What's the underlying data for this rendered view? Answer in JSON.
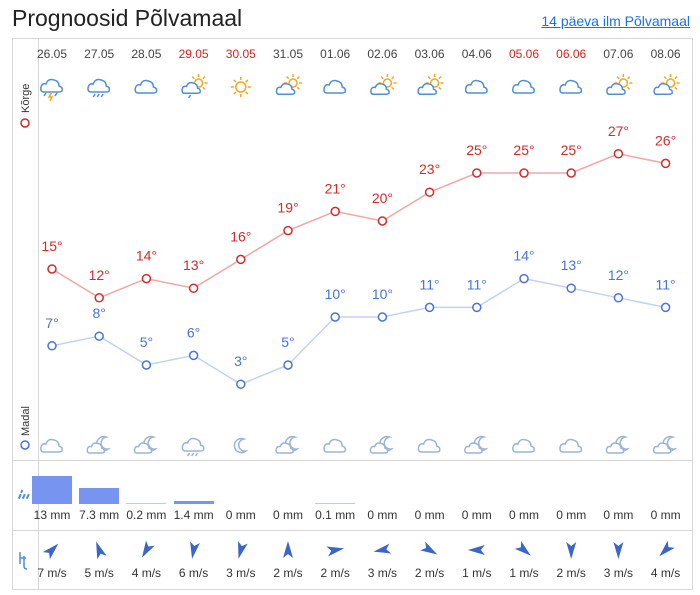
{
  "header": {
    "title": "Prognoosid Põlvamaal",
    "link": "14 päeva ilm Põlvamaal"
  },
  "labels": {
    "high": "Kõrge",
    "low": "Madal"
  },
  "colors": {
    "high": "#d22b2b",
    "low": "#4a73d9",
    "high_line": "#f2a7a7",
    "low_line": "#c3d2f3",
    "rain_bar": "#7795f0",
    "icon": "#4f8fd8",
    "sun": "#f5a623"
  },
  "days": [
    {
      "date": "26.05",
      "weekend": false,
      "day_icon": "thunderstorm-icon",
      "night_icon": "cloud-icon",
      "high": 15,
      "low": 7,
      "rain": 13,
      "rain_label": "13 mm",
      "wind_speed": "7 m/s",
      "wind_dir": 45
    },
    {
      "date": "27.05",
      "weekend": false,
      "day_icon": "rain-cloud-icon",
      "night_icon": "moon-cloud-icon",
      "high": 12,
      "low": 8,
      "rain": 7.3,
      "rain_label": "7.3 mm",
      "wind_speed": "5 m/s",
      "wind_dir": -20
    },
    {
      "date": "28.05",
      "weekend": false,
      "day_icon": "cloud-icon",
      "night_icon": "moon-cloud-icon",
      "high": 14,
      "low": 5,
      "rain": 0.2,
      "rain_label": "0.2 mm",
      "wind_speed": "4 m/s",
      "wind_dir": 210
    },
    {
      "date": "29.05",
      "weekend": true,
      "day_icon": "sun-cloud-rain-icon",
      "night_icon": "rain-cloud-icon",
      "high": 13,
      "low": 6,
      "rain": 1.4,
      "rain_label": "1.4 mm",
      "wind_speed": "6 m/s",
      "wind_dir": 190
    },
    {
      "date": "30.05",
      "weekend": true,
      "day_icon": "sun-icon",
      "night_icon": "moon-icon",
      "high": 16,
      "low": 3,
      "rain": 0,
      "rain_label": "0 mm",
      "wind_speed": "3 m/s",
      "wind_dir": 195
    },
    {
      "date": "31.05",
      "weekend": false,
      "day_icon": "sun-cloud-icon",
      "night_icon": "moon-cloud-icon",
      "high": 19,
      "low": 5,
      "rain": 0,
      "rain_label": "0 mm",
      "wind_speed": "2 m/s",
      "wind_dir": 0
    },
    {
      "date": "01.06",
      "weekend": false,
      "day_icon": "cloud-icon",
      "night_icon": "cloud-icon",
      "high": 21,
      "low": 10,
      "rain": 0.1,
      "rain_label": "0.1 mm",
      "wind_speed": "2 m/s",
      "wind_dir": 80
    },
    {
      "date": "02.06",
      "weekend": false,
      "day_icon": "sun-cloud-icon",
      "night_icon": "moon-cloud-icon",
      "high": 20,
      "low": 10,
      "rain": 0,
      "rain_label": "0 mm",
      "wind_speed": "3 m/s",
      "wind_dir": 260
    },
    {
      "date": "03.06",
      "weekend": false,
      "day_icon": "sun-cloud-icon",
      "night_icon": "cloud-icon",
      "high": 23,
      "low": 11,
      "rain": 0,
      "rain_label": "0 mm",
      "wind_speed": "2 m/s",
      "wind_dir": 120
    },
    {
      "date": "04.06",
      "weekend": false,
      "day_icon": "cloud-icon",
      "night_icon": "moon-cloud-icon",
      "high": 25,
      "low": 11,
      "rain": 0,
      "rain_label": "0 mm",
      "wind_speed": "1 m/s",
      "wind_dir": 270
    },
    {
      "date": "05.06",
      "weekend": true,
      "day_icon": "cloud-icon",
      "night_icon": "cloud-icon",
      "high": 25,
      "low": 14,
      "rain": 0,
      "rain_label": "0 mm",
      "wind_speed": "1 m/s",
      "wind_dir": 130
    },
    {
      "date": "06.06",
      "weekend": true,
      "day_icon": "cloud-icon",
      "night_icon": "cloud-icon",
      "high": 25,
      "low": 13,
      "rain": 0,
      "rain_label": "0 mm",
      "wind_speed": "2 m/s",
      "wind_dir": 180
    },
    {
      "date": "07.06",
      "weekend": false,
      "day_icon": "sun-cloud-icon",
      "night_icon": "moon-cloud-icon",
      "high": 27,
      "low": 12,
      "rain": 0,
      "rain_label": "0 mm",
      "wind_speed": "3 m/s",
      "wind_dir": 180
    },
    {
      "date": "08.06",
      "weekend": false,
      "day_icon": "sun-cloud-icon",
      "night_icon": "moon-cloud-icon",
      "high": 26,
      "low": 11,
      "rain": 0,
      "rain_label": "0 mm",
      "wind_speed": "4 m/s",
      "wind_dir": 225
    }
  ],
  "chart_data": {
    "type": "line",
    "x": [
      "26.05",
      "27.05",
      "28.05",
      "29.05",
      "30.05",
      "31.05",
      "01.06",
      "02.06",
      "03.06",
      "04.06",
      "05.06",
      "06.06",
      "07.06",
      "08.06"
    ],
    "series": [
      {
        "name": "Kõrge",
        "values": [
          15,
          12,
          14,
          13,
          16,
          19,
          21,
          20,
          23,
          25,
          25,
          25,
          27,
          26
        ]
      },
      {
        "name": "Madal",
        "values": [
          7,
          8,
          5,
          6,
          3,
          5,
          10,
          10,
          11,
          11,
          14,
          13,
          12,
          11
        ]
      }
    ],
    "precipitation_mm": [
      13,
      7.3,
      0.2,
      1.4,
      0,
      0,
      0.1,
      0,
      0,
      0,
      0,
      0,
      0,
      0
    ],
    "wind_speed_ms": [
      7,
      5,
      4,
      6,
      3,
      2,
      2,
      3,
      2,
      1,
      1,
      2,
      3,
      4
    ]
  }
}
